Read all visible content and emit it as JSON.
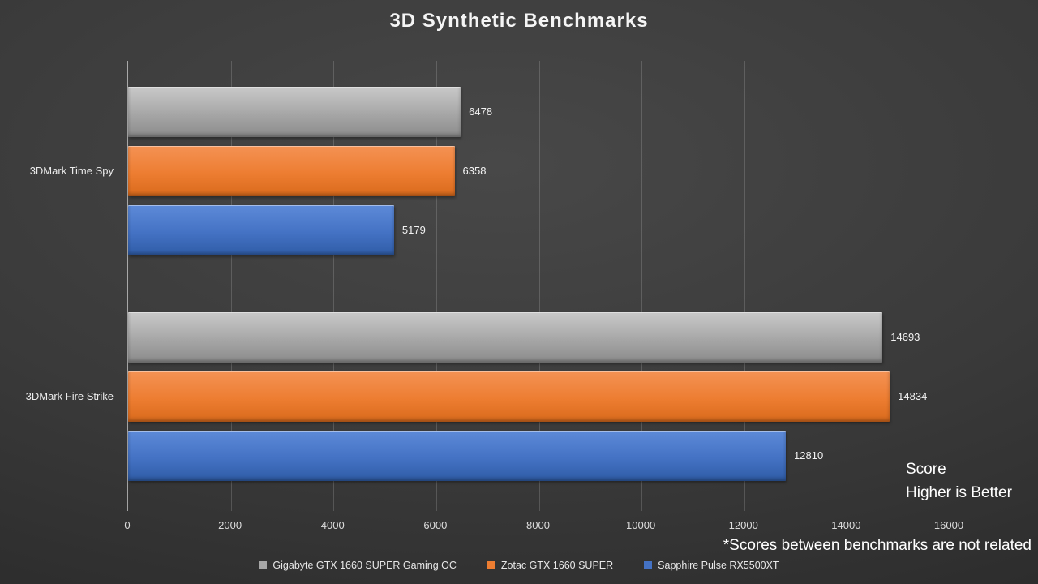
{
  "title": "3D Synthetic Benchmarks",
  "chart_data": {
    "type": "bar",
    "orientation": "horizontal",
    "title": "3D Synthetic Benchmarks",
    "categories": [
      "3DMark Time Spy",
      "3DMark Fire Strike"
    ],
    "series": [
      {
        "name": "Gigabyte GTX 1660 SUPER Gaming OC",
        "color": "#a6a6a6",
        "gradient_top": "#c9c9c9",
        "gradient_bottom": "#8b8b8b",
        "values": [
          6478,
          14693
        ]
      },
      {
        "name": "Zotac GTX 1660 SUPER",
        "color": "#ed7d31",
        "gradient_top": "#f49254",
        "gradient_bottom": "#d96a1c",
        "values": [
          6358,
          14834
        ]
      },
      {
        "name": "Sapphire Pulse RX5500XT",
        "color": "#4472c4",
        "gradient_top": "#5d8ad8",
        "gradient_bottom": "#2f5ca6",
        "values": [
          5179,
          12810
        ]
      }
    ],
    "xlim": [
      0,
      16000
    ],
    "x_ticks": [
      0,
      2000,
      4000,
      6000,
      8000,
      10000,
      12000,
      14000,
      16000
    ],
    "grid": true,
    "legend_position": "bottom"
  },
  "annotations": {
    "score": "Score",
    "higher": "Higher is Better",
    "note": "*Scores between benchmarks are not related"
  }
}
